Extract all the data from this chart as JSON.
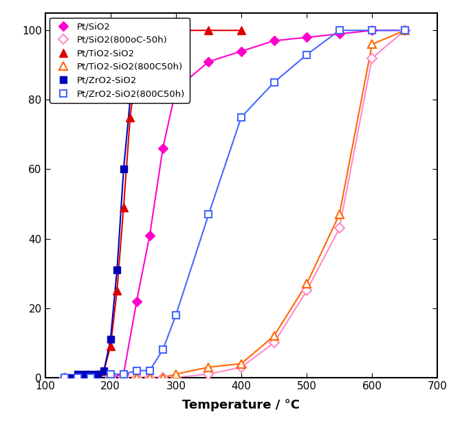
{
  "title": "",
  "xlabel": "Temperature / °C",
  "ylabel": "",
  "xlim": [
    100,
    700
  ],
  "ylim": [
    0,
    105
  ],
  "xticks": [
    100,
    200,
    300,
    400,
    500,
    600,
    700
  ],
  "yticks": [
    0,
    20,
    40,
    60,
    80,
    100
  ],
  "series": [
    {
      "label": "Pt/SiO2",
      "color": "#FF00CC",
      "marker": "D",
      "marker_filled": true,
      "markersize": 7,
      "linewidth": 1.5,
      "x": [
        130,
        150,
        170,
        200,
        220,
        240,
        260,
        280,
        300,
        350,
        400,
        450,
        500,
        550,
        600,
        650
      ],
      "y": [
        0,
        0,
        0,
        0,
        1,
        22,
        41,
        66,
        83,
        91,
        94,
        97,
        98,
        99,
        100,
        100
      ]
    },
    {
      "label": "Pt/SiO2(800oC-50h)",
      "color": "#FF88CC",
      "marker": "D",
      "marker_filled": false,
      "markersize": 7,
      "linewidth": 1.5,
      "x": [
        130,
        150,
        170,
        200,
        220,
        240,
        260,
        280,
        300,
        350,
        400,
        450,
        500,
        550,
        600,
        650
      ],
      "y": [
        0,
        0,
        0,
        0,
        0,
        0,
        0,
        0,
        0,
        1,
        3,
        10,
        25,
        43,
        92,
        100
      ]
    },
    {
      "label": "Pt/TiO2-SiO2",
      "color": "#DD0000",
      "marker": "^",
      "marker_filled": true,
      "markersize": 8,
      "linewidth": 1.5,
      "x": [
        130,
        150,
        160,
        170,
        180,
        190,
        200,
        210,
        220,
        230,
        240,
        250,
        270,
        300,
        350,
        400
      ],
      "y": [
        0,
        0,
        0,
        0,
        1,
        2,
        9,
        25,
        49,
        75,
        90,
        97,
        99,
        100,
        100,
        100
      ]
    },
    {
      "label": "Pt/TiO2-SiO2(800C50h)",
      "color": "#FF6600",
      "marker": "^",
      "marker_filled": false,
      "markersize": 8,
      "linewidth": 1.5,
      "x": [
        130,
        150,
        170,
        200,
        220,
        240,
        260,
        280,
        300,
        350,
        400,
        450,
        500,
        550,
        600,
        650
      ],
      "y": [
        0,
        0,
        0,
        0,
        0,
        0,
        0,
        0,
        1,
        3,
        4,
        12,
        27,
        47,
        96,
        100
      ]
    },
    {
      "label": "Pt/ZrO2-SiO2",
      "color": "#0000BB",
      "marker": "s",
      "marker_filled": true,
      "markersize": 7,
      "linewidth": 1.5,
      "x": [
        130,
        140,
        150,
        160,
        170,
        180,
        190,
        200,
        210,
        220,
        230,
        240,
        250,
        260,
        270,
        300
      ],
      "y": [
        0,
        0,
        1,
        1,
        1,
        1,
        2,
        11,
        31,
        60,
        80,
        93,
        98,
        99,
        100,
        100
      ]
    },
    {
      "label": "Pt/ZrO2-SiO2(800C50h)",
      "color": "#4466FF",
      "marker": "s",
      "marker_filled": false,
      "markersize": 7,
      "linewidth": 1.5,
      "x": [
        130,
        150,
        170,
        200,
        220,
        240,
        260,
        280,
        300,
        350,
        400,
        450,
        500,
        550,
        600,
        650
      ],
      "y": [
        0,
        0,
        0,
        1,
        1,
        2,
        2,
        8,
        18,
        47,
        75,
        85,
        93,
        100,
        100,
        100
      ]
    }
  ],
  "legend_loc": "upper left",
  "background_color": "#ffffff",
  "figure_size": [
    6.56,
    6.32
  ],
  "dpi": 100
}
